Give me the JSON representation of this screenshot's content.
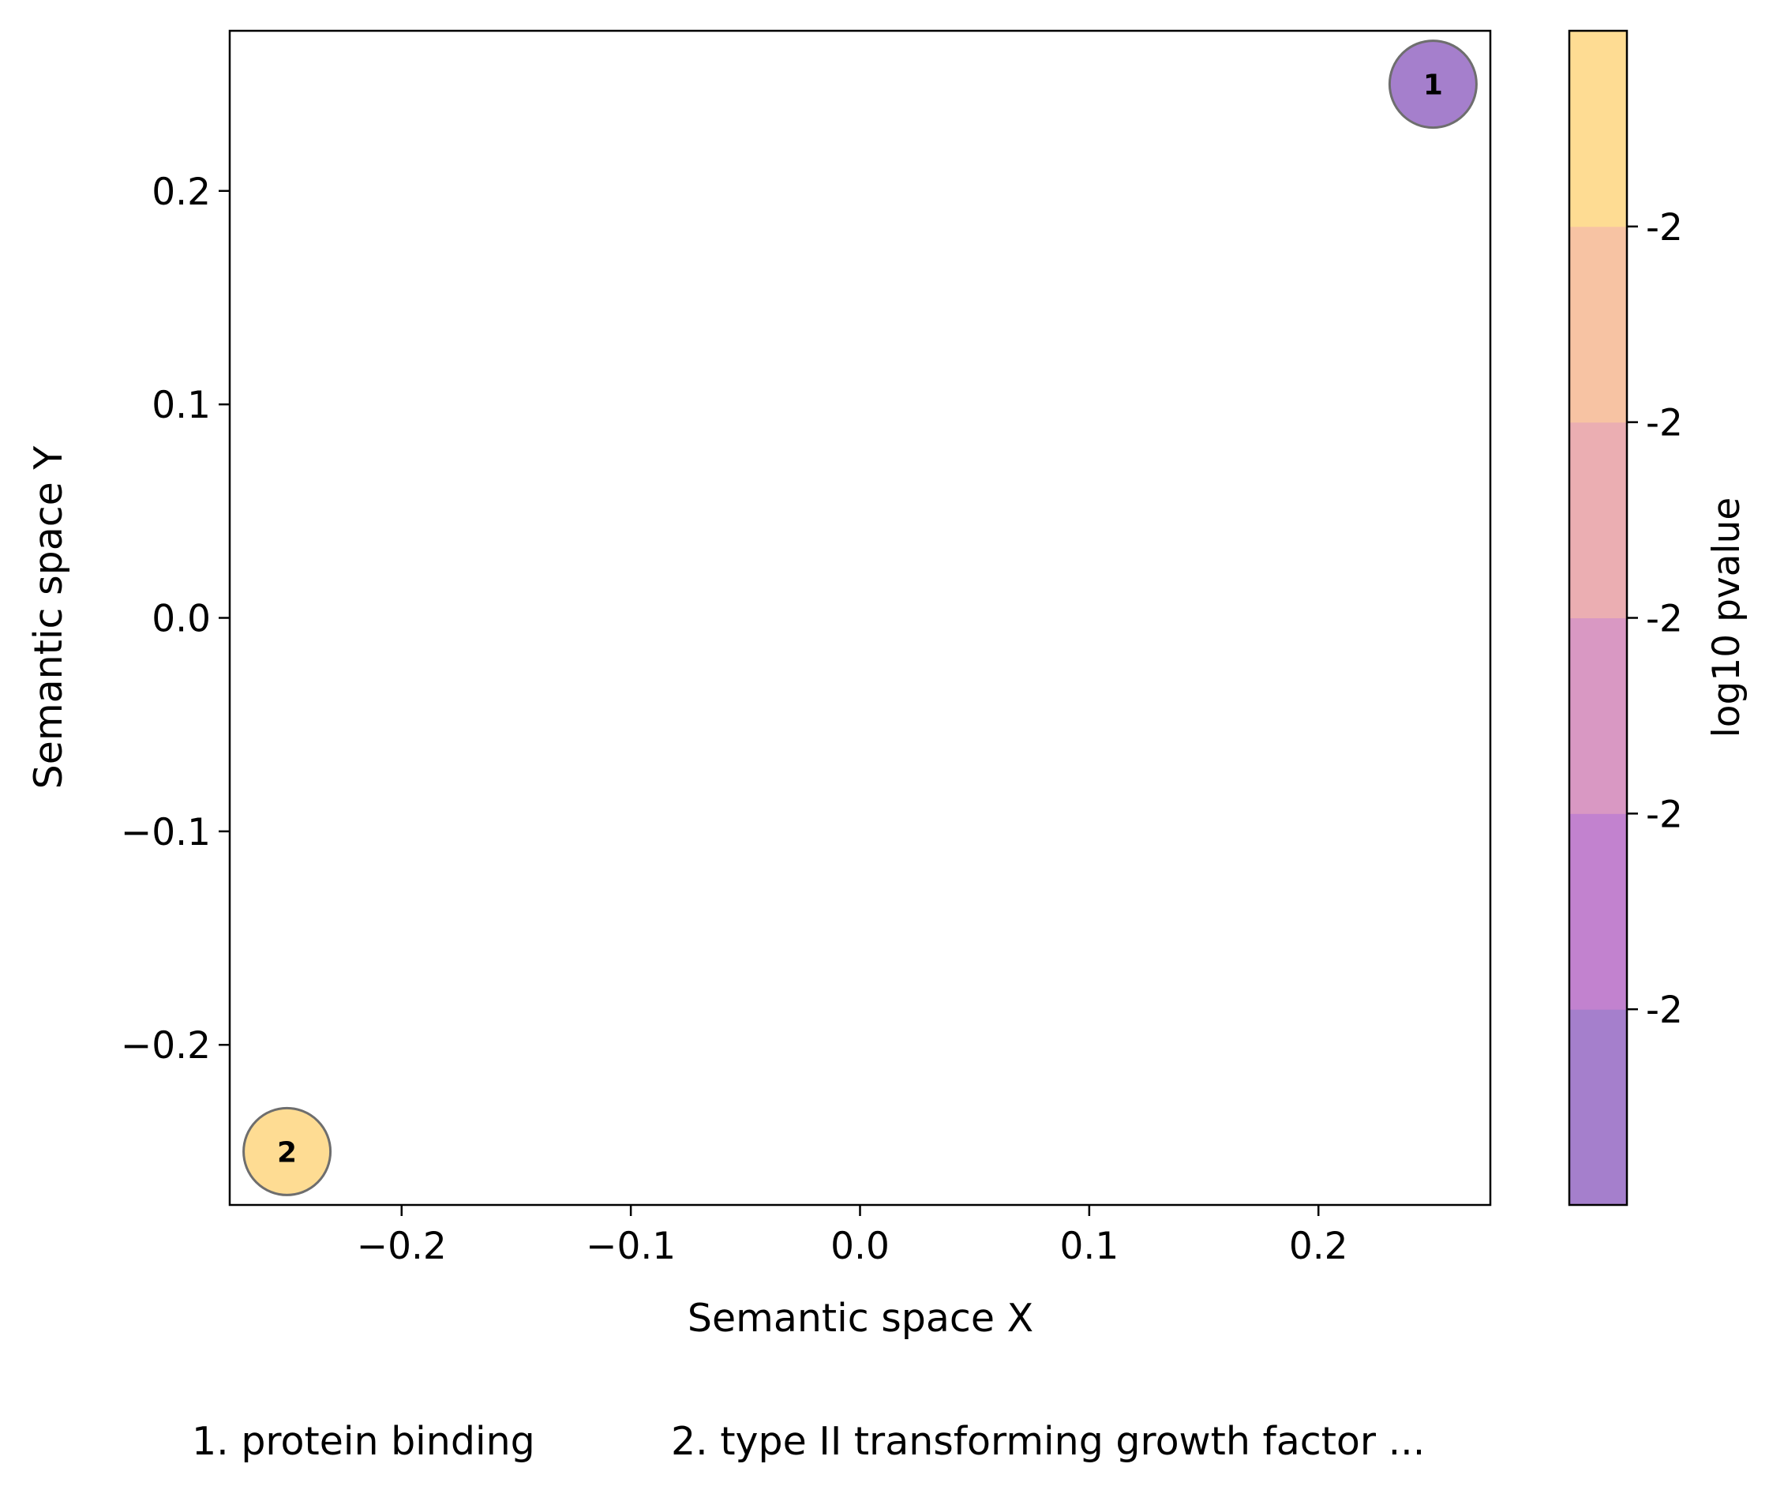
{
  "chart_data": {
    "type": "scatter",
    "title": "",
    "xlabel": "Semantic space X",
    "ylabel": "Semantic space Y",
    "xlim": [
      -0.275,
      0.275
    ],
    "ylim": [
      -0.275,
      0.275
    ],
    "xticks": [
      -0.2,
      -0.1,
      0.0,
      0.1,
      0.2
    ],
    "xtick_labels": [
      "−0.2",
      "−0.1",
      "0.0",
      "0.1",
      "0.2"
    ],
    "yticks": [
      0.2,
      0.1,
      0.0,
      -0.1,
      -0.2
    ],
    "ytick_labels": [
      "0.2",
      "0.1",
      "0.0",
      "−0.1",
      "−0.2"
    ],
    "grid": false,
    "points": [
      {
        "label": "1",
        "x": 0.25,
        "y": 0.25,
        "color": "#a57fcc"
      },
      {
        "label": "2",
        "x": -0.25,
        "y": -0.25,
        "color": "#fedc93"
      }
    ],
    "colorbar": {
      "label": "log10 pvalue",
      "bands": [
        "#a57fcc",
        "#c282cf",
        "#d998c3",
        "#ebaeb2",
        "#f7c3a3",
        "#fedc93"
      ],
      "tick_labels": [
        "-2",
        "-2",
        "-2",
        "-2",
        "-2"
      ]
    },
    "legend_items": [
      "1. protein binding",
      "2. type II transforming growth factor ..."
    ]
  }
}
